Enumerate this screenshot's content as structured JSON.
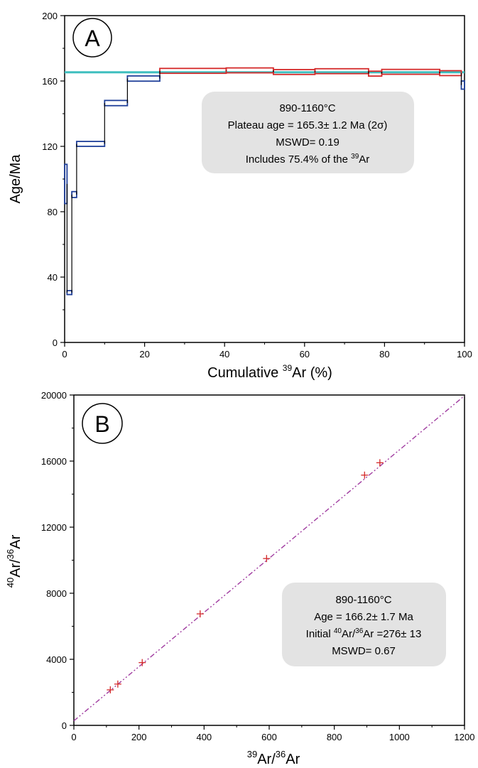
{
  "chart_data": [
    {
      "panel": "A",
      "type": "line",
      "xlabel": {
        "main": "Cumulative ",
        "sup": "39",
        "rest": "Ar (%)"
      },
      "ylabel": "Age/Ma",
      "xlim": [
        0,
        100
      ],
      "ylim": [
        0,
        200
      ],
      "xticks": [
        "0",
        "20",
        "40",
        "60",
        "80",
        "100"
      ],
      "yticks": [
        "0",
        "40",
        "80",
        "120",
        "160",
        "200"
      ],
      "plateau_age": 165.3,
      "plateau_color": "#3fbfbf",
      "steps": [
        {
          "x0": 0.0,
          "x1": 0.6,
          "age": 97,
          "err": 12,
          "color": "#1f3f99"
        },
        {
          "x0": 0.6,
          "x1": 1.8,
          "age": 30.5,
          "err": 1.2,
          "color": "#1f3f99"
        },
        {
          "x0": 1.8,
          "x1": 3.0,
          "age": 90.5,
          "err": 1.8,
          "color": "#1f3f99"
        },
        {
          "x0": 3.0,
          "x1": 10.0,
          "age": 121.5,
          "err": 1.5,
          "color": "#1f3f99"
        },
        {
          "x0": 10.0,
          "x1": 15.7,
          "age": 146.5,
          "err": 1.6,
          "color": "#1f3f99"
        },
        {
          "x0": 15.7,
          "x1": 23.8,
          "age": 161.5,
          "err": 1.6,
          "color": "#1f3f99"
        },
        {
          "x0": 23.8,
          "x1": 40.4,
          "age": 166.2,
          "err": 1.5,
          "color": "#d42a2a"
        },
        {
          "x0": 40.4,
          "x1": 52.2,
          "age": 166.5,
          "err": 1.5,
          "color": "#d42a2a"
        },
        {
          "x0": 52.2,
          "x1": 62.6,
          "age": 165.5,
          "err": 1.5,
          "color": "#d42a2a"
        },
        {
          "x0": 62.6,
          "x1": 76.0,
          "age": 166.0,
          "err": 1.5,
          "color": "#d42a2a"
        },
        {
          "x0": 76.0,
          "x1": 79.3,
          "age": 164.5,
          "err": 1.5,
          "color": "#d42a2a"
        },
        {
          "x0": 79.3,
          "x1": 93.8,
          "age": 165.6,
          "err": 1.5,
          "color": "#d42a2a"
        },
        {
          "x0": 93.8,
          "x1": 99.2,
          "age": 164.8,
          "err": 1.5,
          "color": "#d42a2a"
        },
        {
          "x0": 99.2,
          "x1": 100.0,
          "age": 157.5,
          "err": 2.5,
          "color": "#1f3f99"
        }
      ],
      "annotation": {
        "line1": "890-1160°C",
        "line2": "Plateau age = 165.3± 1.2 Ma (2σ)",
        "line3": "MSWD= 0.19",
        "line4_pre": "Includes 75.4% of the ",
        "line4_sup": "39",
        "line4_post": "Ar"
      }
    },
    {
      "panel": "B",
      "type": "scatter",
      "xlabel": {
        "sup1": "39",
        "mid": "Ar/",
        "sup2": "36",
        "rest": "Ar"
      },
      "ylabel": {
        "sup1": "40",
        "mid": "Ar/",
        "sup2": "36",
        "rest": "Ar"
      },
      "xlim": [
        0,
        1200
      ],
      "ylim": [
        0,
        20000
      ],
      "xticks": [
        "0",
        "200",
        "400",
        "600",
        "800",
        "1000",
        "1200"
      ],
      "yticks": [
        "0",
        "4000",
        "8000",
        "12000",
        "16000",
        "20000"
      ],
      "points": [
        {
          "x": 112,
          "y": 2150
        },
        {
          "x": 135,
          "y": 2500
        },
        {
          "x": 210,
          "y": 3800
        },
        {
          "x": 388,
          "y": 6750
        },
        {
          "x": 592,
          "y": 10100
        },
        {
          "x": 893,
          "y": 15150
        },
        {
          "x": 940,
          "y": 15900
        }
      ],
      "isochron": {
        "intercept": 276,
        "slope": 16.4,
        "color": "#a03ca0"
      },
      "point_color": "#d42a2a",
      "annotation": {
        "line1": "890-1160°C",
        "line2": "Age = 166.2± 1.7 Ma",
        "line3_pre": "Initial ",
        "line3_sup1": "40",
        "line3_mid": "Ar/",
        "line3_sup2": "36",
        "line3_post": "Ar =276± 13",
        "line4": "MSWD= 0.67"
      }
    }
  ]
}
